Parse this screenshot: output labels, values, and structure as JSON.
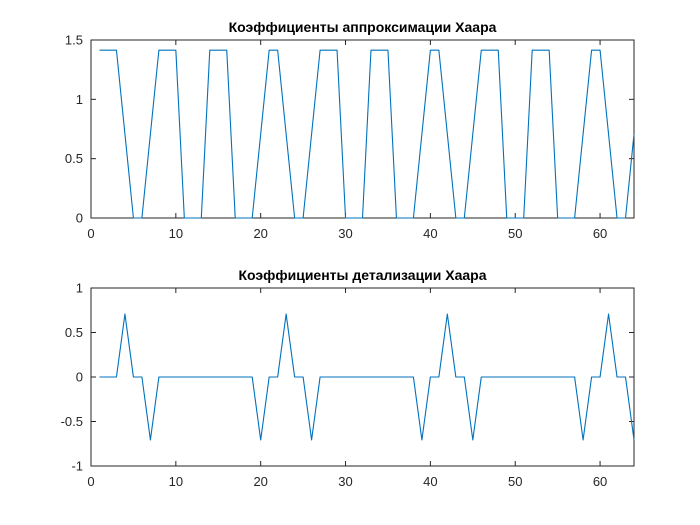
{
  "chart_data": [
    {
      "type": "line",
      "title": "Коэффициенты аппроксимации Хаара",
      "xlabel": "",
      "ylabel": "",
      "xlim": [
        0,
        64
      ],
      "ylim": [
        0,
        1.5
      ],
      "xticks": [
        0,
        10,
        20,
        30,
        40,
        50,
        60
      ],
      "yticks": [
        0,
        0.5,
        1,
        1.5
      ],
      "xtick_labels": [
        "0",
        "10",
        "20",
        "30",
        "40",
        "50",
        "60"
      ],
      "ytick_labels": [
        "0",
        "0.5",
        "1",
        "1.5"
      ],
      "grid": false,
      "color": "#0072BD",
      "series": [
        {
          "x": [
            1,
            2,
            3,
            4,
            5,
            6,
            7,
            8,
            9,
            10,
            11,
            12,
            13,
            14,
            15,
            16,
            17,
            18,
            19,
            20,
            21,
            22,
            23,
            24,
            25,
            26,
            27,
            28,
            29,
            30,
            31,
            32,
            33,
            34,
            35,
            36,
            37,
            38,
            39,
            40,
            41,
            42,
            43,
            44,
            45,
            46,
            47,
            48,
            49,
            50,
            51,
            52,
            53,
            54,
            55,
            56,
            57,
            58,
            59,
            60,
            61,
            62,
            63,
            64
          ],
          "values": [
            1.414,
            1.414,
            1.414,
            0.707,
            0,
            0,
            0.707,
            1.414,
            1.414,
            1.414,
            0,
            0,
            0,
            1.414,
            1.414,
            1.414,
            0,
            0,
            0,
            0.707,
            1.414,
            1.414,
            0.707,
            0,
            0,
            0.707,
            1.414,
            1.414,
            1.414,
            0,
            0,
            0,
            1.414,
            1.414,
            1.414,
            0,
            0,
            0,
            0.707,
            1.414,
            1.414,
            0.707,
            0,
            0,
            0.707,
            1.414,
            1.414,
            1.414,
            0,
            0,
            0,
            1.414,
            1.414,
            1.414,
            0,
            0,
            0,
            0.707,
            1.414,
            1.414,
            0.707,
            0,
            0,
            0.707
          ]
        }
      ]
    },
    {
      "type": "line",
      "title": "Коэффициенты детализации Хаара",
      "xlabel": "",
      "ylabel": "",
      "xlim": [
        0,
        64
      ],
      "ylim": [
        -1,
        1
      ],
      "xticks": [
        0,
        10,
        20,
        30,
        40,
        50,
        60
      ],
      "yticks": [
        -1,
        -0.5,
        0,
        0.5,
        1
      ],
      "xtick_labels": [
        "0",
        "10",
        "20",
        "30",
        "40",
        "50",
        "60"
      ],
      "ytick_labels": [
        "-1",
        "-0.5",
        "0",
        "0.5",
        "1"
      ],
      "grid": false,
      "color": "#0072BD",
      "series": [
        {
          "x": [
            1,
            2,
            3,
            4,
            5,
            6,
            7,
            8,
            9,
            10,
            11,
            12,
            13,
            14,
            15,
            16,
            17,
            18,
            19,
            20,
            21,
            22,
            23,
            24,
            25,
            26,
            27,
            28,
            29,
            30,
            31,
            32,
            33,
            34,
            35,
            36,
            37,
            38,
            39,
            40,
            41,
            42,
            43,
            44,
            45,
            46,
            47,
            48,
            49,
            50,
            51,
            52,
            53,
            54,
            55,
            56,
            57,
            58,
            59,
            60,
            61,
            62,
            63,
            64
          ],
          "values": [
            0,
            0,
            0,
            0.707,
            0,
            0,
            -0.707,
            0,
            0,
            0,
            0,
            0,
            0,
            0,
            0,
            0,
            0,
            0,
            0,
            -0.707,
            0,
            0,
            0.707,
            0,
            0,
            -0.707,
            0,
            0,
            0,
            0,
            0,
            0,
            0,
            0,
            0,
            0,
            0,
            0,
            -0.707,
            0,
            0,
            0.707,
            0,
            0,
            -0.707,
            0,
            0,
            0,
            0,
            0,
            0,
            0,
            0,
            0,
            0,
            0,
            0,
            -0.707,
            0,
            0,
            0.707,
            0,
            0,
            -0.707
          ]
        }
      ]
    }
  ]
}
